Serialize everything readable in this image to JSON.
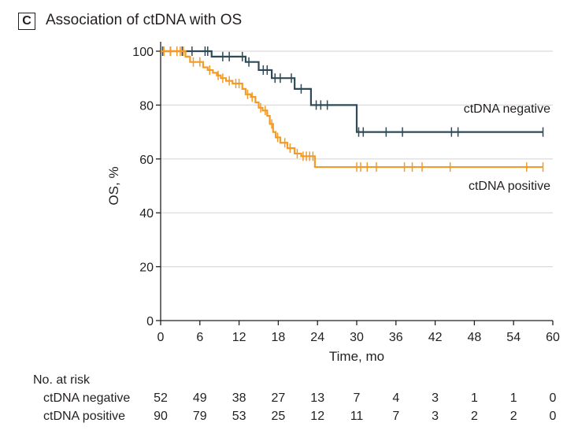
{
  "panel": {
    "letter": "C",
    "title": "Association of ctDNA with OS"
  },
  "chart_data": {
    "type": "line",
    "title": "Association of ctDNA with OS",
    "xlabel": "Time, mo",
    "ylabel": "OS, %",
    "xlim": [
      0,
      60
    ],
    "ylim": [
      0,
      100
    ],
    "xticks": [
      0,
      6,
      12,
      18,
      24,
      30,
      36,
      42,
      48,
      54,
      60
    ],
    "yticks": [
      0,
      20,
      40,
      60,
      80,
      100
    ],
    "grid": "horizontal",
    "legend": "inline labels at right of curves",
    "series": [
      {
        "name": "ctDNA negative",
        "color": "#2e4a57",
        "step": [
          [
            0,
            100
          ],
          [
            7.8,
            98
          ],
          [
            13,
            96
          ],
          [
            15,
            93
          ],
          [
            17,
            90
          ],
          [
            20.5,
            86
          ],
          [
            23,
            80
          ],
          [
            30,
            70
          ],
          [
            58.5,
            70
          ]
        ],
        "censors": [
          0.3,
          1.5,
          2.5,
          3.3,
          4.8,
          6.8,
          7.2,
          9.5,
          10.5,
          12.5,
          13.5,
          15.7,
          16.3,
          17.5,
          18.3,
          20,
          21.5,
          23.8,
          24.5,
          25.5,
          30.3,
          31,
          34.5,
          37,
          44.5,
          45.5,
          58.5
        ]
      },
      {
        "name": "ctDNA positive",
        "color": "#f39b27",
        "step": [
          [
            0,
            100
          ],
          [
            3.8,
            98
          ],
          [
            4.5,
            96
          ],
          [
            6.5,
            94
          ],
          [
            7.2,
            93
          ],
          [
            8,
            92
          ],
          [
            8.6,
            91
          ],
          [
            9.2,
            90
          ],
          [
            10,
            89
          ],
          [
            11,
            88
          ],
          [
            12.5,
            86
          ],
          [
            13,
            84
          ],
          [
            13.8,
            83
          ],
          [
            14.5,
            81
          ],
          [
            15,
            79
          ],
          [
            15.6,
            78
          ],
          [
            16.3,
            76
          ],
          [
            16.7,
            73
          ],
          [
            17.2,
            70
          ],
          [
            17.6,
            68
          ],
          [
            18.3,
            66
          ],
          [
            19.4,
            64
          ],
          [
            20.5,
            62
          ],
          [
            21.5,
            61
          ],
          [
            23.6,
            57
          ],
          [
            58.5,
            57
          ]
        ],
        "censors": [
          0.5,
          1.5,
          2.5,
          3,
          3.5,
          5,
          6,
          7.5,
          8.8,
          9.5,
          10.5,
          11.5,
          12,
          13.3,
          14,
          15.3,
          16,
          17,
          17.9,
          19,
          19.8,
          20.9,
          21.8,
          22.3,
          22.8,
          23.3,
          30,
          30.6,
          31.6,
          33,
          37.3,
          38.5,
          40,
          44.3,
          56,
          58.5
        ]
      }
    ],
    "risk_table": {
      "header": "No. at risk",
      "times": [
        0,
        6,
        12,
        18,
        24,
        30,
        36,
        42,
        48,
        54,
        60
      ],
      "rows": [
        {
          "label": "ctDNA negative",
          "values": [
            52,
            49,
            38,
            27,
            13,
            7,
            4,
            3,
            1,
            1,
            0
          ]
        },
        {
          "label": "ctDNA positive",
          "values": [
            90,
            79,
            53,
            25,
            12,
            11,
            7,
            3,
            2,
            2,
            0
          ]
        }
      ]
    }
  }
}
